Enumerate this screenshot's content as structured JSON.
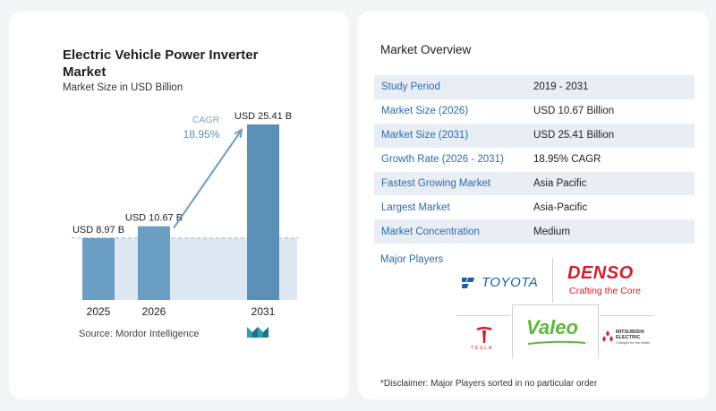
{
  "chart_data": {
    "type": "bar",
    "title": "Electric Vehicle Power Inverter Market",
    "subtitle": "Market Size in USD Billion",
    "categories": [
      "2025",
      "2026",
      "2031"
    ],
    "values": [
      8.97,
      10.67,
      25.41
    ],
    "value_labels": [
      "USD 8.97 B",
      "USD 10.67 B",
      "USD 25.41 B"
    ],
    "cagr_label": "CAGR",
    "cagr_value": "18.95%",
    "ylim": [
      0,
      25.41
    ],
    "grid": false,
    "colors": {
      "bar": "#6a9ec2",
      "bar_dark": "#5b8fb5",
      "band": "#dde8f2",
      "arrow": "#6a9ec2",
      "cagr_text": "#5b8fb5"
    }
  },
  "source": "Source:  Mordor Intelligence",
  "overview": {
    "title": "Market Overview",
    "rows": [
      {
        "key": "Study Period",
        "value": "2019 - 2031"
      },
      {
        "key": "Market Size (2026)",
        "value": "USD 10.67 Billion"
      },
      {
        "key": "Market Size (2031)",
        "value": "USD 25.41 Billion"
      },
      {
        "key": "Growth Rate (2026 - 2031)",
        "value": "18.95% CAGR"
      },
      {
        "key": "Fastest Growing Market",
        "value": "Asia Pacific"
      },
      {
        "key": "Largest Market",
        "value": "Asia-Pacific"
      },
      {
        "key": "Market Concentration",
        "value": "Medium"
      }
    ]
  },
  "players": {
    "title": "Major Players",
    "toyota": "TOYOTA",
    "denso": "DENSO",
    "denso_tagline": "Crafting the Core",
    "tesla": "TESLA",
    "valeo": "Valeo",
    "mitsubishi_1": "MITSUBISHI",
    "mitsubishi_2": "ELECTRIC",
    "mitsubishi_3": "Changes for the Better"
  },
  "disclaimer": "*Disclaimer: Major Players sorted in no particular order"
}
